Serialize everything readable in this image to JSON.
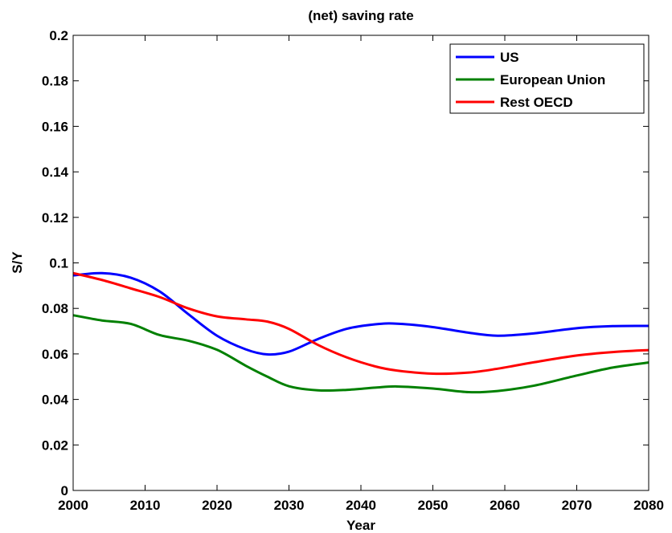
{
  "chart_data": {
    "type": "line",
    "title": "(net) saving rate",
    "xlabel": "Year",
    "ylabel": "S/Y",
    "xlim": [
      2000,
      2080
    ],
    "ylim": [
      0,
      0.2
    ],
    "x_ticks": [
      "2000",
      "2010",
      "2020",
      "2030",
      "2040",
      "2050",
      "2060",
      "2070",
      "2080"
    ],
    "y_ticks": [
      "0",
      "0.02",
      "0.04",
      "0.06",
      "0.08",
      "0.1",
      "0.12",
      "0.14",
      "0.16",
      "0.18",
      "0.2"
    ],
    "grid": false,
    "legend_position": "top-right",
    "x": [
      2000,
      2004,
      2008,
      2012,
      2016,
      2020,
      2024,
      2027,
      2030,
      2034,
      2038,
      2042,
      2045,
      2050,
      2055,
      2059,
      2064,
      2070,
      2075,
      2080
    ],
    "series": [
      {
        "name": "US",
        "color": "#0000ff",
        "values": [
          0.0945,
          0.0955,
          0.0935,
          0.0875,
          0.0775,
          0.068,
          0.062,
          0.0598,
          0.061,
          0.0665,
          0.071,
          0.073,
          0.0733,
          0.0718,
          0.0693,
          0.068,
          0.069,
          0.0713,
          0.0722,
          0.0723
        ]
      },
      {
        "name": "European Union",
        "color": "#008000",
        "values": [
          0.077,
          0.0747,
          0.0732,
          0.0683,
          0.0658,
          0.0618,
          0.0548,
          0.05,
          0.0458,
          0.044,
          0.0442,
          0.0452,
          0.0457,
          0.0448,
          0.0432,
          0.0437,
          0.046,
          0.0505,
          0.054,
          0.0562
        ]
      },
      {
        "name": "Rest OECD",
        "color": "#ff0000",
        "values": [
          0.0955,
          0.0925,
          0.0888,
          0.085,
          0.08,
          0.0765,
          0.0752,
          0.0742,
          0.071,
          0.064,
          0.0585,
          0.0545,
          0.0527,
          0.0513,
          0.0518,
          0.0535,
          0.0563,
          0.0593,
          0.0608,
          0.0617
        ]
      }
    ]
  }
}
